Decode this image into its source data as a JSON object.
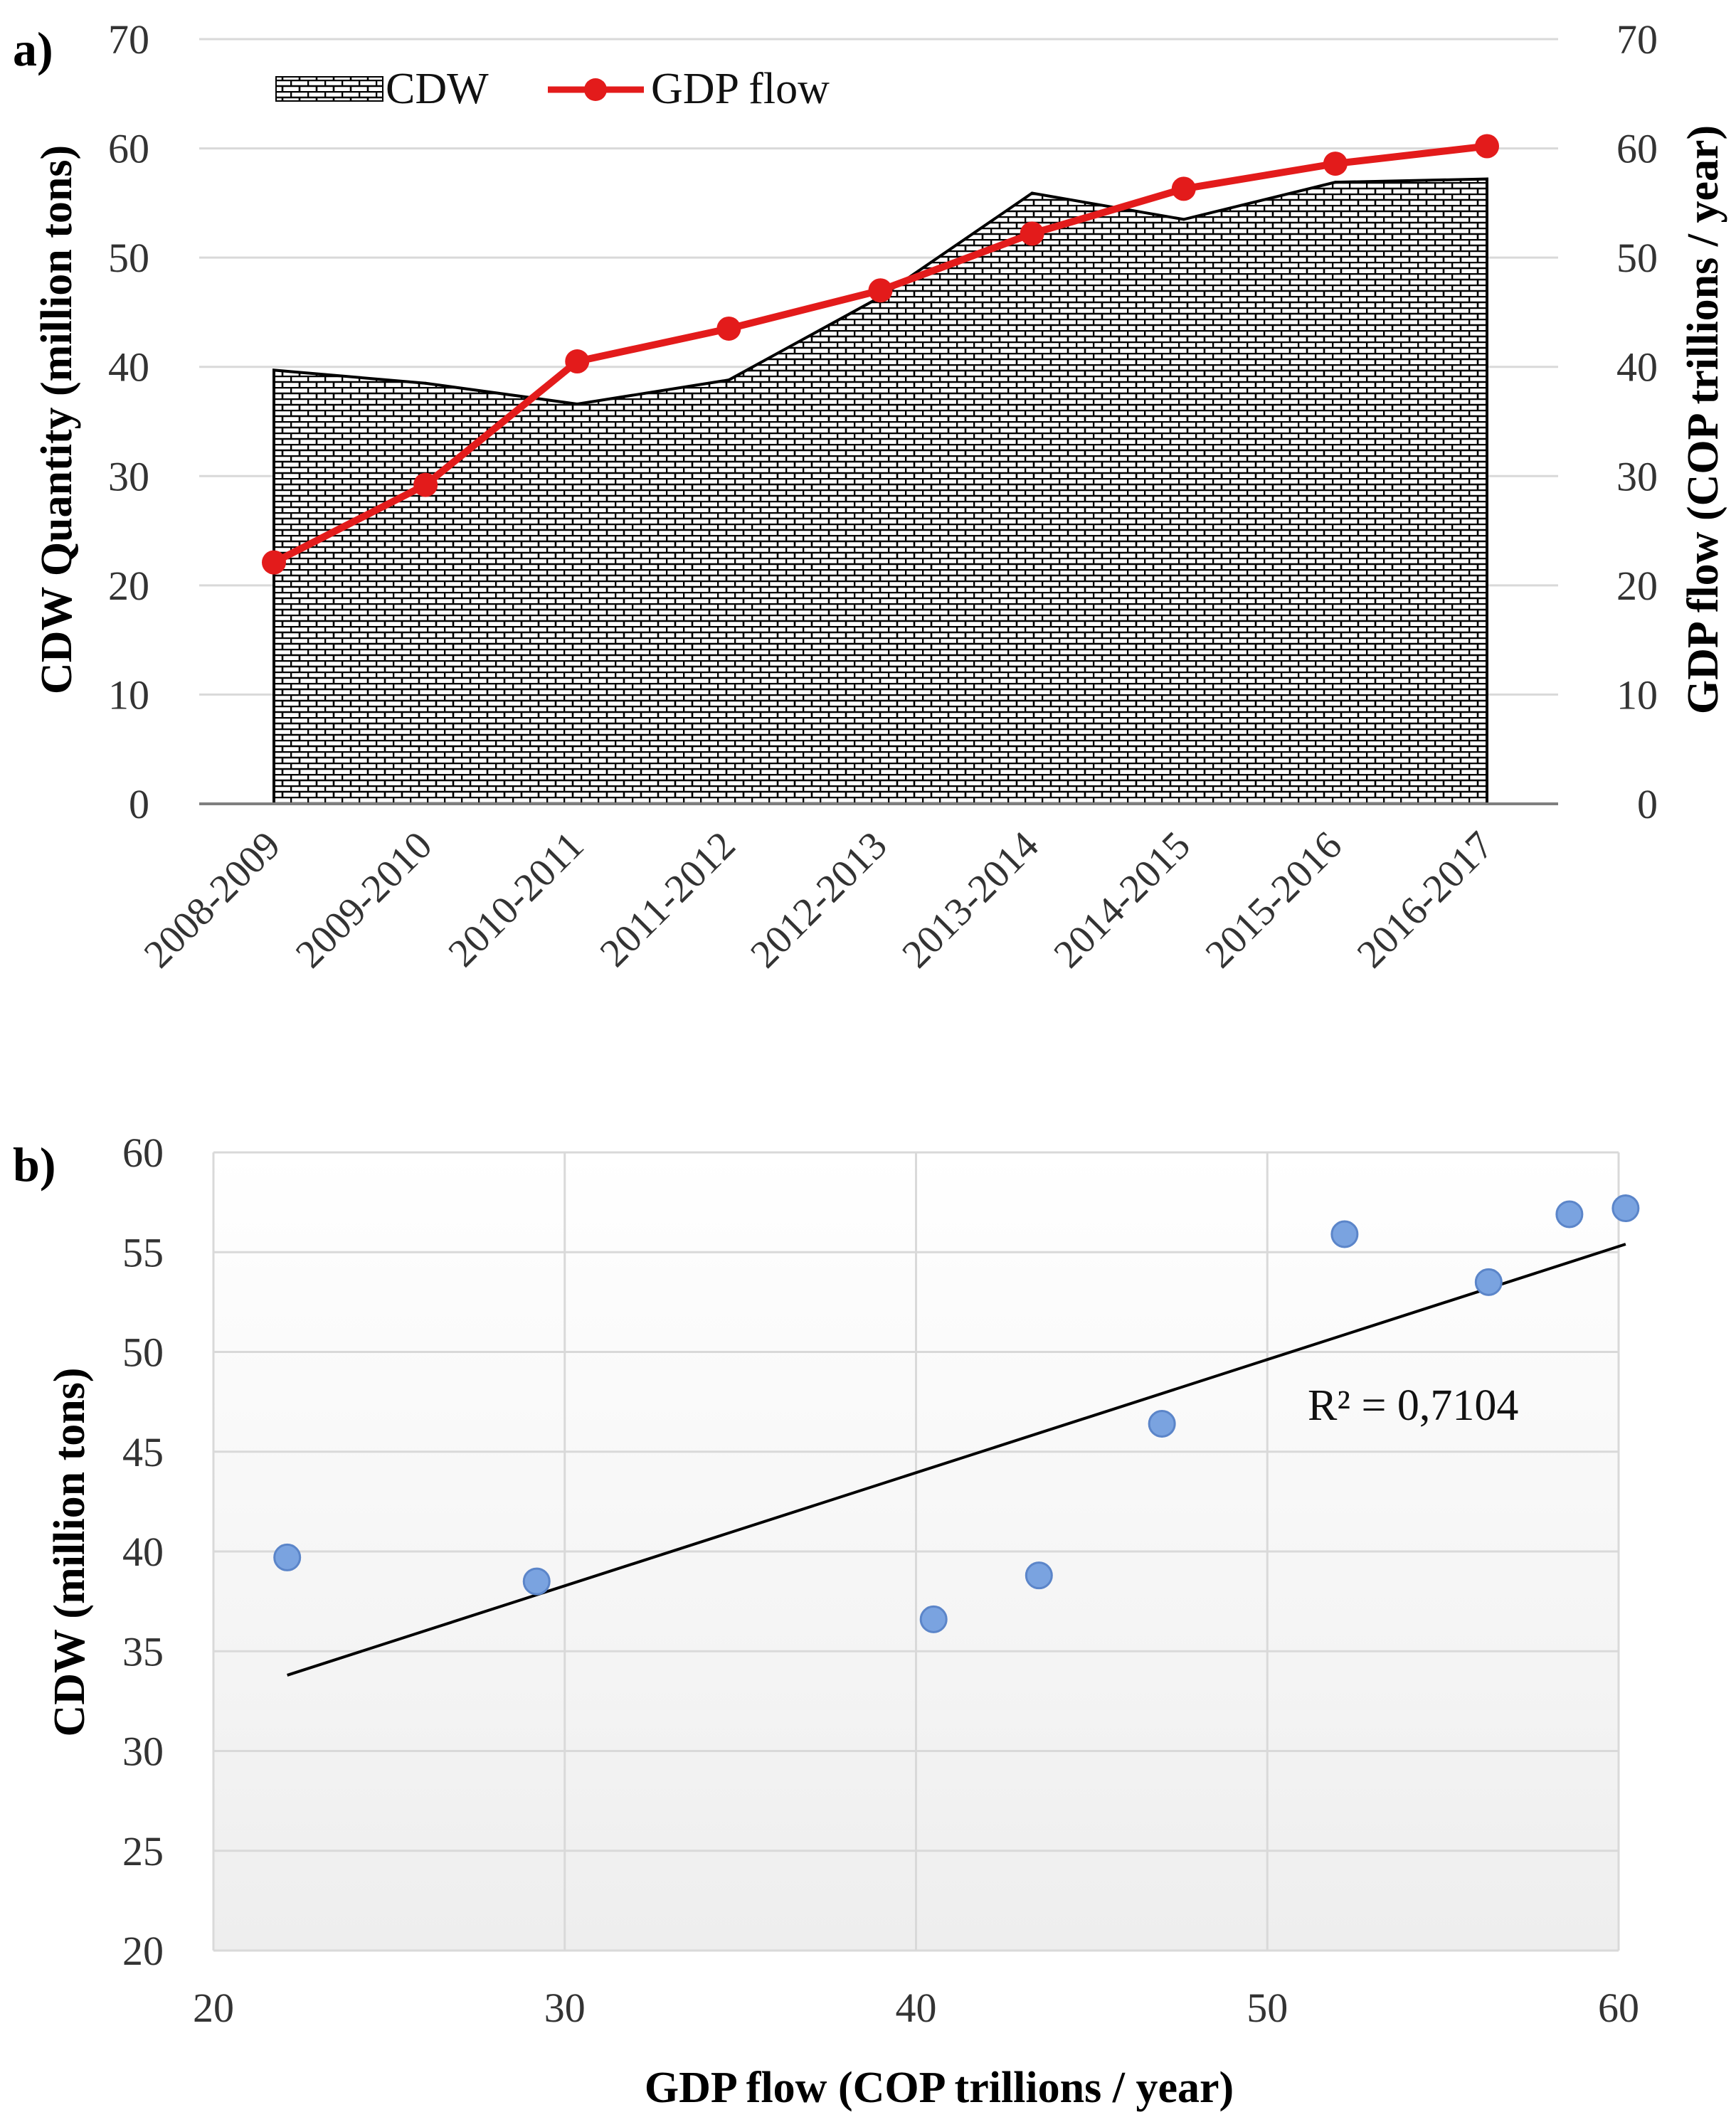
{
  "chart_data": [
    {
      "panel_label": "a)",
      "type": "area+line",
      "categories": [
        "2008-2009",
        "2009-2010",
        "2010-2011",
        "2011-2012",
        "2012-2013",
        "2013-2014",
        "2014-2015",
        "2015-2016",
        "2016-2017"
      ],
      "series": [
        {
          "name": "CDW",
          "type": "area",
          "axis": "left",
          "color": "#000000",
          "pattern": "brick",
          "values": [
            39.7,
            38.5,
            36.6,
            38.8,
            46.4,
            55.9,
            53.5,
            56.9,
            57.2
          ]
        },
        {
          "name": "GDP flow",
          "type": "line",
          "axis": "right",
          "color": "#e31b1b",
          "values": [
            22.1,
            29.2,
            40.5,
            43.5,
            47.0,
            52.2,
            56.3,
            58.6,
            60.2
          ]
        }
      ],
      "ylabel": "CDW Quantity (million tons)",
      "ylabel_right": "GDP flow (COP trillions / year)",
      "ylim": [
        0,
        70
      ],
      "ylim_right": [
        0,
        70
      ],
      "yticks": [
        0,
        10,
        20,
        30,
        40,
        50,
        60,
        70
      ],
      "grid": true,
      "legend": "top-left"
    },
    {
      "panel_label": "b)",
      "type": "scatter",
      "x": [
        22.1,
        29.2,
        40.5,
        43.5,
        47.0,
        52.2,
        56.3,
        58.6,
        60.2
      ],
      "y": [
        39.7,
        38.5,
        36.6,
        38.8,
        46.4,
        55.9,
        53.5,
        56.9,
        57.2
      ],
      "point_color": "#7aa3e0",
      "trendline": {
        "type": "linear",
        "x": [
          22.1,
          60.2
        ],
        "y": [
          33.8,
          55.4
        ],
        "color": "#000000"
      },
      "annotation": "R² = 0,7104",
      "xlabel": "GDP flow (COP trillions / year)",
      "ylabel": "CDW  (million tons)",
      "xlim": [
        20,
        60
      ],
      "ylim": [
        20,
        60
      ],
      "xticks": [
        20,
        30,
        40,
        50,
        60
      ],
      "yticks": [
        20,
        25,
        30,
        35,
        40,
        45,
        50,
        55,
        60
      ],
      "grid": true
    }
  ]
}
